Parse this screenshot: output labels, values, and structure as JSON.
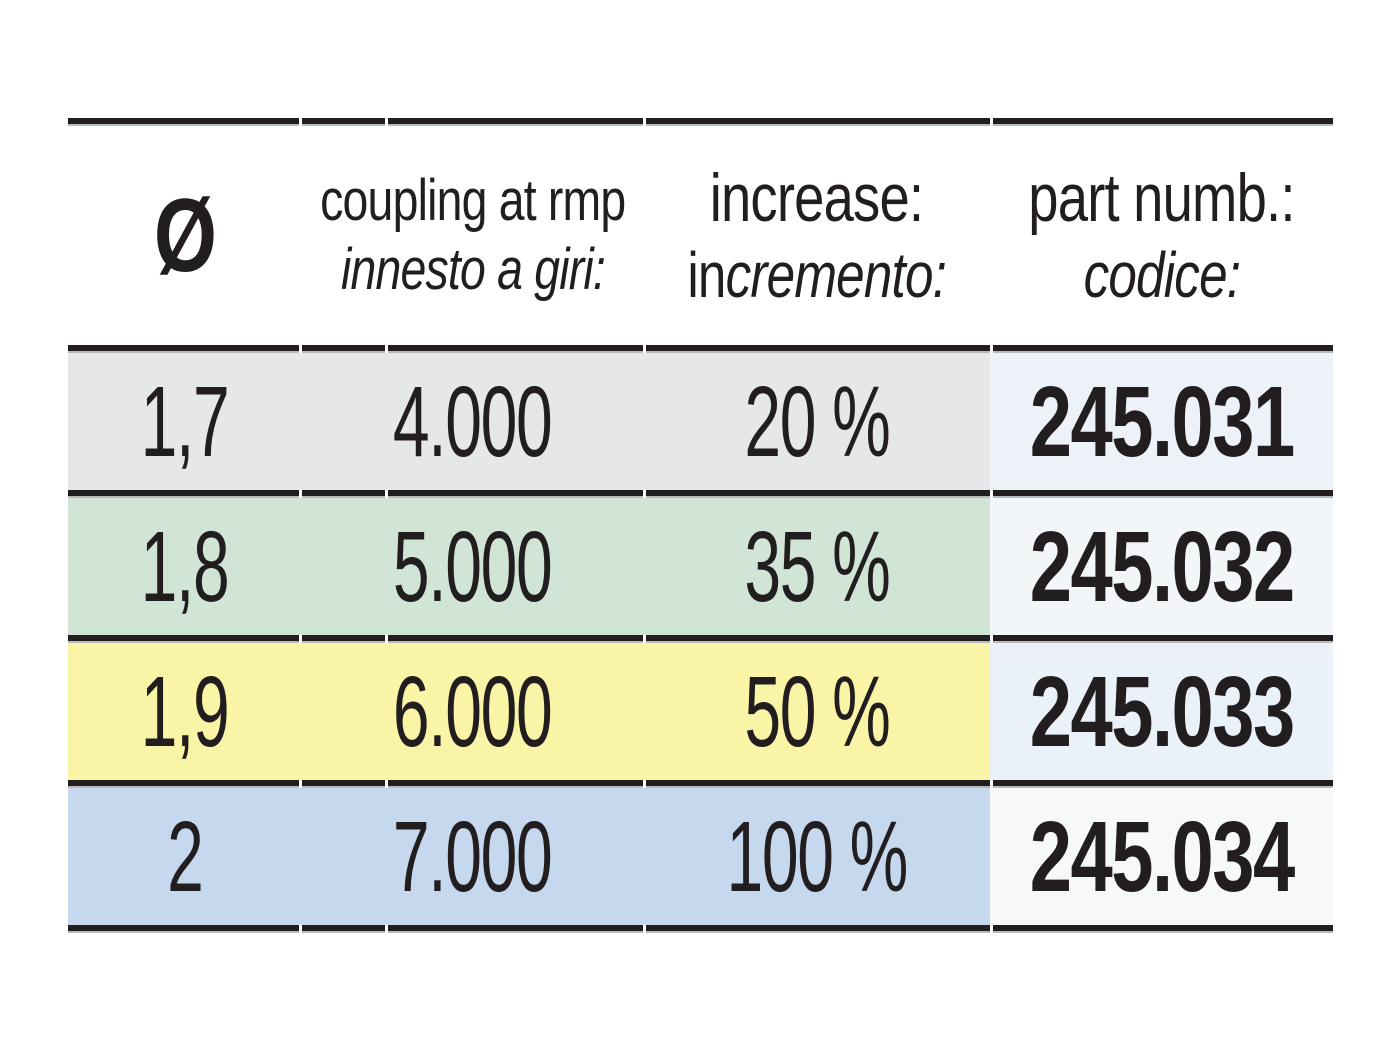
{
  "page": {
    "background": "#ffffff"
  },
  "table": {
    "header": {
      "diameter_symbol": "Ø",
      "coupling_en": "coupling at rmp",
      "coupling_it": "innesto a giri:",
      "increase_en": "increase:",
      "increase_it_upright": "in",
      "increase_it_italic": "cremento:",
      "part_en": "part numb.:",
      "part_it": "codice:"
    },
    "colors": {
      "text": "#221e1f",
      "divider": "#221e1f",
      "divider_shadow": "#b9b9b9"
    },
    "rows": [
      {
        "diameter": "1,7",
        "coupling_rpm": "4.000",
        "increase": "20 %",
        "part_number": "245.031",
        "row_color": "#e6e7e9",
        "part_bg": "#ecf2f8"
      },
      {
        "diameter": "1,8",
        "coupling_rpm": "5.000",
        "increase": "35 %",
        "part_number": "245.032",
        "row_color": "#d0e5d5",
        "part_bg": "#f3f6f9"
      },
      {
        "diameter": "1,9",
        "coupling_rpm": "6.000",
        "increase": "50 %",
        "part_number": "245.033",
        "row_color": "#faf5a6",
        "part_bg": "#eaf1f8"
      },
      {
        "diameter": "2",
        "coupling_rpm": "7.000",
        "increase": "100 %",
        "part_number": "245.034",
        "row_color": "#c6d8ee",
        "part_bg": "#f6f8fa"
      }
    ]
  }
}
